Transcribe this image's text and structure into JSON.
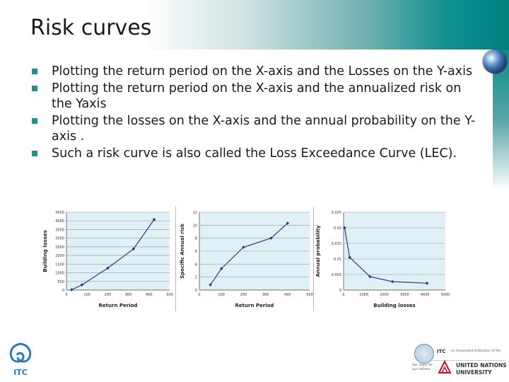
{
  "slide": {
    "title": "Risk curves",
    "bullets": [
      "Plotting the return period on the X-axis and the Losses on the Y-axis",
      "Plotting the return period on the X-axis and the annualized risk on the Yaxis",
      "Plotting the losses on the X-axis and the annual probability on the Y-axis .",
      "Such a risk curve is also called the Loss Exceedance Curve (LEC)."
    ]
  },
  "logos": {
    "itc_text": "ITC",
    "itc_small": "ITC",
    "associated": "an Associated Institution of the",
    "unu_line1": "UNITED NATIONS",
    "unu_line2": "UNIVERSITY",
    "tagline": "Our Hope for our nations"
  },
  "colors": {
    "plot_bg": "#dff0f6",
    "line": "#1f3f88",
    "marker": "#1f3f88",
    "bullet": "#2b8c8c"
  },
  "chart_data": [
    {
      "type": "line",
      "xlabel": "Return Period",
      "ylabel": "Building losses",
      "xlim": [
        0,
        500
      ],
      "ylim": [
        0,
        4500
      ],
      "xticks": [
        "0",
        "100",
        "200",
        "300",
        "400",
        "500"
      ],
      "yticks": [
        "0",
        "500",
        "1000",
        "1500",
        "2000",
        "2500",
        "3000",
        "3500",
        "4000",
        "4500"
      ],
      "x": [
        25,
        75,
        200,
        325,
        425
      ],
      "y": [
        20,
        300,
        1270,
        2380,
        4080
      ]
    },
    {
      "type": "line",
      "xlabel": "Return Period",
      "ylabel": "Specific Annual risk",
      "xlim": [
        0,
        500
      ],
      "ylim": [
        0,
        12
      ],
      "xticks": [
        "0",
        "100",
        "200",
        "300",
        "400",
        "500"
      ],
      "yticks": [
        "0",
        "2",
        "4",
        "6",
        "8",
        "10",
        "12"
      ],
      "x": [
        50,
        100,
        200,
        325,
        400
      ],
      "y": [
        0.8,
        3.3,
        6.6,
        8.0,
        10.3
      ]
    },
    {
      "type": "line",
      "xlabel": "Building losses",
      "ylabel": "Annual probability",
      "xlim": [
        0,
        5000
      ],
      "ylim": [
        0,
        0.025
      ],
      "xticks": [
        "0",
        "1000",
        "2000",
        "3000",
        "4000",
        "5000"
      ],
      "yticks": [
        "0",
        "0.005",
        "0.01",
        "0.015",
        "0.02",
        "0.025"
      ],
      "x": [
        50,
        300,
        1300,
        2400,
        4100
      ],
      "y": [
        0.02,
        0.0105,
        0.0043,
        0.0027,
        0.0022
      ]
    }
  ]
}
